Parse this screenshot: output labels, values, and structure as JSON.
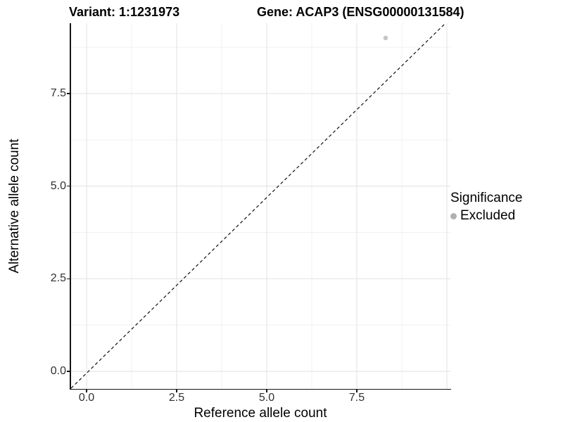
{
  "header": {
    "variant_title": "Variant: 1:1231973",
    "gene_title": "Gene: ACAP3 (ENSG00000131584)"
  },
  "chart_data": {
    "type": "scatter",
    "xlabel": "Reference allele count",
    "ylabel": "Alternative allele count",
    "x_ticks": {
      "values": [
        0,
        2.5,
        5,
        7.5
      ],
      "labels": [
        "0.0",
        "2.5",
        "5.0",
        "7.5"
      ]
    },
    "y_ticks": {
      "values": [
        0,
        2.5,
        5,
        7.5
      ],
      "labels": [
        "0.0",
        "2.5",
        "5.0",
        "7.5"
      ]
    },
    "grid": {
      "x_major": [
        0,
        2.5,
        5,
        7.5,
        10
      ],
      "x_minor": [
        1.25,
        3.75,
        6.25,
        8.75
      ],
      "y_major": [
        0,
        2.5,
        5,
        7.5
      ],
      "y_minor": [
        1.25,
        3.75,
        6.25,
        8.75
      ],
      "major_color": "#e6e6e6",
      "minor_color": "#f0f0f0"
    },
    "xlim": [
      -0.45,
      10.1
    ],
    "ylim": [
      -0.47,
      9.4
    ],
    "points": [
      {
        "x": 8.3,
        "y": 9.0,
        "series": "Excluded",
        "color": "#c6c6c6"
      }
    ],
    "reference_line": {
      "kind": "identity",
      "slope": 1,
      "intercept": 0,
      "style": "dashed",
      "color": "#111111"
    },
    "legend": {
      "title": "Significance",
      "position": "right",
      "entries": [
        {
          "label": "Excluded",
          "marker": "circle",
          "color": "#b0b0b0"
        }
      ]
    }
  }
}
